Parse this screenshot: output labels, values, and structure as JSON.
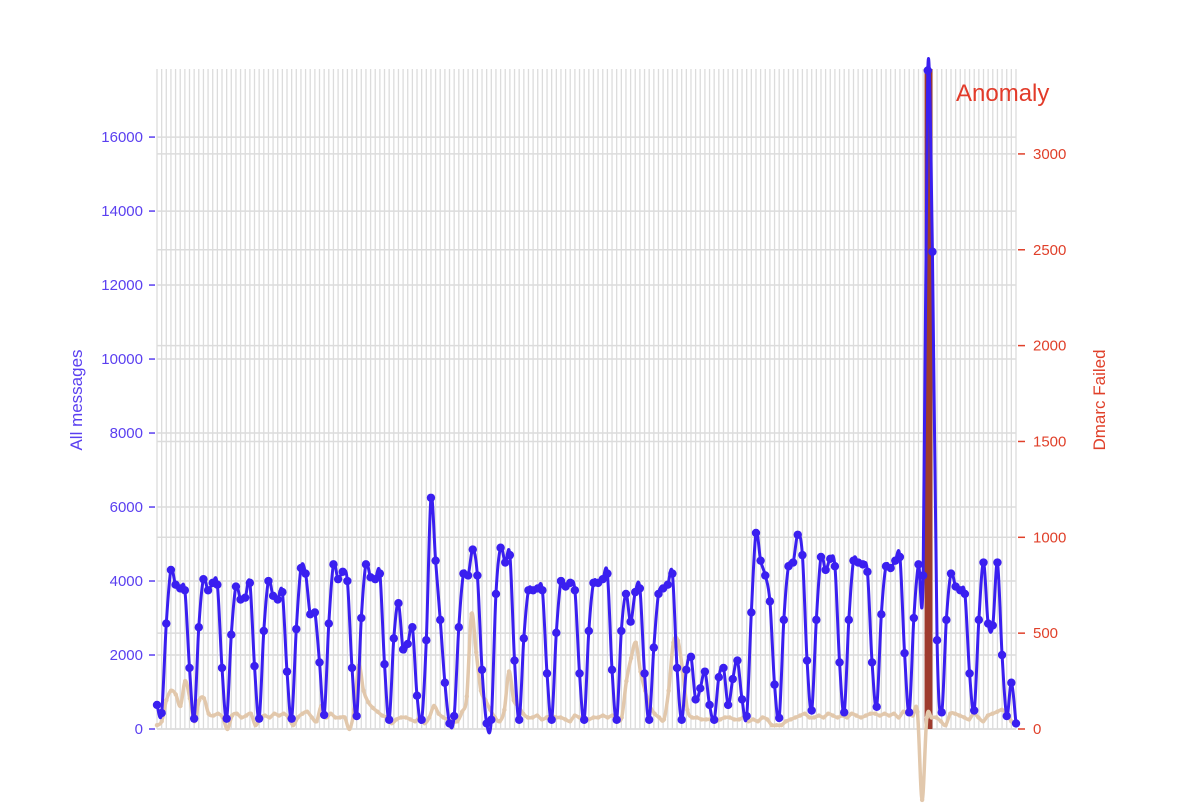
{
  "chart_data": {
    "type": "line",
    "title": "",
    "xlabel": "",
    "ylabel": "All messages",
    "y2label": "Dmarc Failed",
    "ylim": [
      0,
      17840
    ],
    "y2lim": [
      0,
      3443
    ],
    "yticks": [
      0,
      2000,
      4000,
      6000,
      8000,
      10000,
      12000,
      14000,
      16000
    ],
    "y2ticks": [
      0,
      500,
      1000,
      1500,
      2000,
      2500,
      3000
    ],
    "grid": true,
    "colors": {
      "all_messages": "#3a1ff0",
      "dmarc_failed": "#e2c8ac",
      "anomaly": "#9e3b2e",
      "left_axis": "#5a3ff0",
      "right_axis": "#e0402a"
    },
    "annotation": {
      "text": "Anomaly",
      "x_range": [
        165.3,
        167.0
      ]
    },
    "series": [
      {
        "axis": "left",
        "values": [
          650,
          430,
          2850,
          4300,
          3900,
          3800,
          3750,
          1650,
          280,
          2750,
          4050,
          3750,
          3950,
          3900,
          1650,
          280,
          2550,
          3850,
          3500,
          3550,
          3950,
          1700,
          280,
          2650,
          4000,
          3600,
          3500,
          3700,
          1550,
          280,
          2700,
          4350,
          4200,
          3100,
          3150,
          1800,
          380,
          2850,
          4450,
          4050,
          4250,
          4000,
          1650,
          350,
          3000,
          4450,
          4100,
          4050,
          4200,
          1750,
          250,
          2450,
          3400,
          2150,
          2300,
          2750,
          900,
          250,
          2400,
          6250,
          4550,
          2950,
          1250,
          150,
          350,
          2750,
          4200,
          4150,
          4850,
          4150,
          1600,
          150,
          250,
          3650,
          4900,
          4500,
          4700,
          1850,
          250,
          2450,
          3750,
          3750,
          3800,
          3750,
          1500,
          250,
          2600,
          4000,
          3850,
          3950,
          3750,
          1500,
          250,
          2650,
          3950,
          3950,
          4050,
          4200,
          1600,
          250,
          2650,
          3650,
          2900,
          3700,
          3800,
          1500,
          250,
          2200,
          3650,
          3800,
          3900,
          4200,
          1650,
          250,
          1600,
          1950,
          800,
          1100,
          1550,
          650,
          250,
          1400,
          1650,
          650,
          1350,
          1850,
          800,
          350,
          3150,
          5300,
          4550,
          4150,
          3450,
          1200,
          300,
          2950,
          4400,
          4500,
          5250,
          4700,
          1850,
          500,
          2950,
          4650,
          4300,
          4600,
          4400,
          1800,
          450,
          2950,
          4550,
          4500,
          4450,
          4250,
          1800,
          600,
          3100,
          4400,
          4350,
          4550,
          4650,
          2050,
          450,
          3000,
          4450,
          4150,
          17800,
          12900,
          2400,
          450,
          2950,
          4200,
          3850,
          3750,
          3650,
          1500,
          500,
          2950,
          4500,
          2850,
          2800,
          4500,
          2000,
          350,
          1250,
          150
        ]
      },
      {
        "axis": "right",
        "values": [
          20,
          40,
          150,
          200,
          180,
          120,
          250,
          160,
          40,
          150,
          160,
          80,
          70,
          80,
          60,
          0,
          70,
          80,
          60,
          70,
          80,
          20,
          60,
          70,
          60,
          80,
          70,
          80,
          60,
          20,
          60,
          80,
          90,
          60,
          40,
          120,
          60,
          80,
          60,
          60,
          60,
          0,
          100,
          330,
          200,
          140,
          110,
          90,
          70,
          60,
          30,
          50,
          60,
          60,
          50,
          40,
          60,
          30,
          60,
          120,
          80,
          60,
          50,
          40,
          40,
          90,
          170,
          600,
          400,
          200,
          150,
          100,
          60,
          40,
          100,
          300,
          150,
          120,
          80,
          60,
          60,
          70,
          50,
          60,
          70,
          60,
          60,
          50,
          40,
          70,
          60,
          60,
          50,
          60,
          60,
          70,
          60,
          70,
          50,
          60,
          250,
          370,
          450,
          300,
          200,
          120,
          80,
          60,
          50,
          200,
          450,
          460,
          300,
          100,
          60,
          60,
          50,
          50,
          50,
          40,
          50,
          60,
          60,
          50,
          50,
          60,
          40,
          50,
          40,
          60,
          50,
          20,
          20,
          20,
          40,
          50,
          60,
          70,
          80,
          60,
          60,
          70,
          60,
          80,
          70,
          60,
          70,
          60,
          80,
          70,
          60,
          70,
          80,
          80,
          70,
          80,
          70,
          80,
          60,
          90,
          80,
          70,
          90,
          -370,
          60,
          60,
          60,
          40,
          20,
          80,
          80,
          70,
          60,
          50,
          80,
          60,
          40,
          70,
          80,
          90,
          100,
          80,
          40,
          20
        ]
      }
    ]
  }
}
